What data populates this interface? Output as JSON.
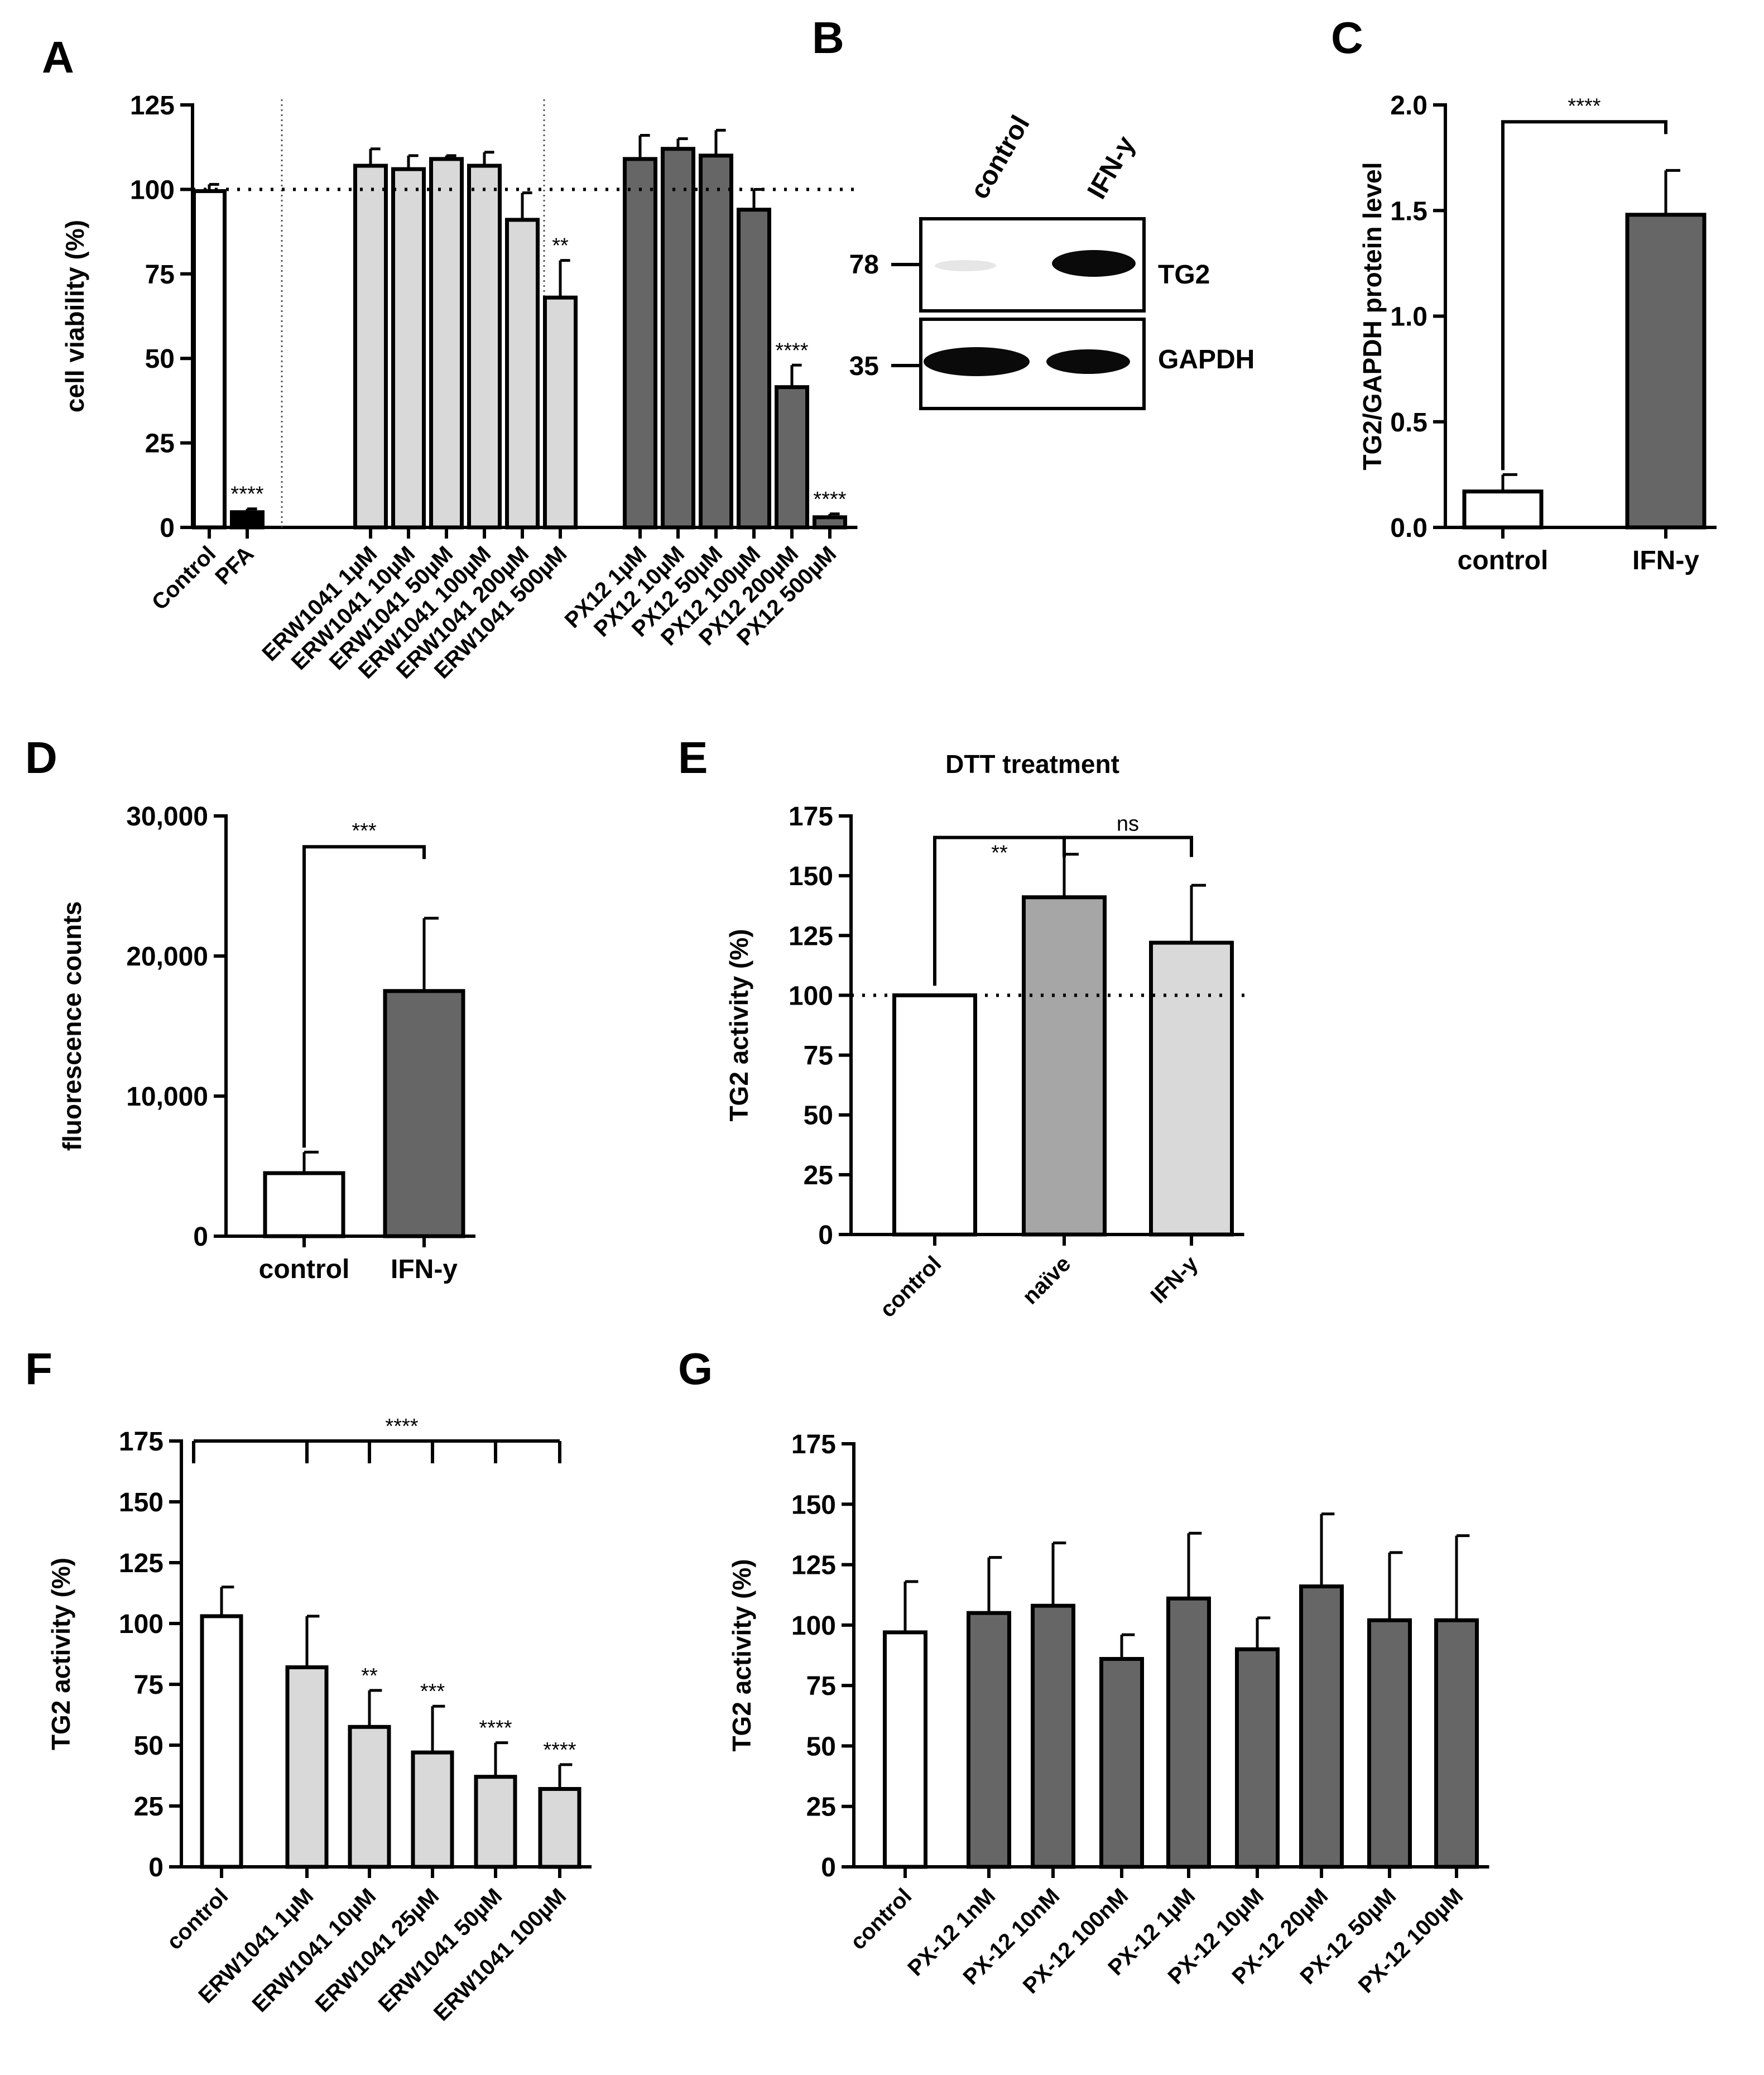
{
  "panels": {
    "A": "A",
    "B": "B",
    "C": "C",
    "D": "D",
    "E": "E",
    "F": "F",
    "G": "G"
  },
  "colors": {
    "white": "#ffffff",
    "light": "#d9d9d9",
    "dark": "#666666",
    "medium": "#a6a6a6"
  },
  "blot": {
    "lane_labels": [
      "control",
      "IFN-y"
    ],
    "bands": [
      {
        "marker": "78",
        "name": "TG2"
      },
      {
        "marker": "35",
        "name": "GAPDH"
      }
    ]
  },
  "chart_data": [
    {
      "panel": "A",
      "type": "bar",
      "title": "",
      "xlabel": "",
      "ylabel": "cell viability (%)",
      "ylim": [
        0,
        125
      ],
      "yticks": [
        "0",
        "25",
        "50",
        "75",
        "100",
        "125"
      ],
      "ytick_values": [
        0,
        25,
        50,
        75,
        100,
        125
      ],
      "reference_line": 100,
      "categories": [
        "Control",
        "PFA",
        "ERW1041 1µM",
        "ERW1041 10µM",
        "ERW1041 50µM",
        "ERW1041 100µM",
        "ERW1041 200µM",
        "ERW1041 500µM",
        "PX12 1µM",
        "PX12 10µM",
        "PX12 50µM",
        "PX12 100µM",
        "PX12 200µM",
        "PX12 500µM"
      ],
      "values": [
        99.5,
        4.5,
        107,
        106,
        109,
        107,
        91,
        68,
        109,
        112,
        110,
        94,
        41.5,
        3
      ],
      "errors": [
        2,
        1,
        5,
        4,
        1,
        4,
        8,
        11,
        7,
        3,
        7.5,
        6,
        6.5,
        1
      ],
      "colors": [
        "white",
        "black",
        "light",
        "light",
        "light",
        "light",
        "light",
        "light",
        "dark",
        "dark",
        "dark",
        "dark",
        "dark",
        "dark"
      ],
      "significance": [
        "",
        "****",
        "",
        "",
        "",
        "",
        "",
        "**",
        "",
        "",
        "",
        "",
        "****",
        "****"
      ]
    },
    {
      "panel": "C",
      "type": "bar",
      "title": "",
      "xlabel": "",
      "ylabel": "TG2/GAPDH protein level",
      "ylim": [
        0,
        2.0
      ],
      "yticks": [
        "0.0",
        "0.5",
        "1.0",
        "1.5",
        "2.0"
      ],
      "ytick_values": [
        0,
        0.5,
        1.0,
        1.5,
        2.0
      ],
      "categories": [
        "control",
        "IFN-y"
      ],
      "values": [
        0.17,
        1.48
      ],
      "errors": [
        0.08,
        0.21
      ],
      "colors": [
        "white",
        "dark"
      ],
      "bracket_label": "****"
    },
    {
      "panel": "D",
      "type": "bar",
      "title": "",
      "xlabel": "",
      "ylabel": "fluorescence counts",
      "ylim": [
        0,
        30000
      ],
      "yticks": [
        "0",
        "10,000",
        "20,000",
        "30,000"
      ],
      "ytick_values": [
        0,
        10000,
        20000,
        30000
      ],
      "categories": [
        "control",
        "IFN-y"
      ],
      "values": [
        4500,
        17500
      ],
      "errors": [
        1500,
        5200
      ],
      "colors": [
        "white",
        "dark"
      ],
      "bracket_label": "***"
    },
    {
      "panel": "E",
      "type": "bar",
      "title": "DTT treatment",
      "xlabel": "",
      "ylabel": "TG2 activity (%)",
      "ylim": [
        0,
        175
      ],
      "yticks": [
        "0",
        "25",
        "50",
        "75",
        "100",
        "125",
        "150",
        "175"
      ],
      "ytick_values": [
        0,
        25,
        50,
        75,
        100,
        125,
        150,
        175
      ],
      "reference_line": 100,
      "categories": [
        "control",
        "naïve",
        "IFN-y"
      ],
      "values": [
        100,
        141,
        122
      ],
      "errors": [
        0,
        18,
        24
      ],
      "colors": [
        "white",
        "medium",
        "light"
      ],
      "bracket_labels": [
        "**",
        "ns"
      ]
    },
    {
      "panel": "F",
      "type": "bar",
      "title": "",
      "xlabel": "",
      "ylabel": "TG2 activity (%)",
      "ylim": [
        0,
        175
      ],
      "yticks": [
        "0",
        "25",
        "50",
        "75",
        "100",
        "125",
        "150",
        "175"
      ],
      "ytick_values": [
        0,
        25,
        50,
        75,
        100,
        125,
        150,
        175
      ],
      "categories": [
        "control",
        "ERW1041 1µM",
        "ERW1041 10µM",
        "ERW1041 25µM",
        "ERW1041 50µM",
        "ERW1041 100µM"
      ],
      "values": [
        103,
        82,
        57.5,
        47,
        37,
        32
      ],
      "errors": [
        12,
        21,
        15,
        19,
        14,
        10
      ],
      "colors": [
        "white",
        "light",
        "light",
        "light",
        "light",
        "light"
      ],
      "significance": [
        "",
        "",
        "**",
        "***",
        "****",
        "****"
      ],
      "bracket_label": "****"
    },
    {
      "panel": "G",
      "type": "bar",
      "title": "",
      "xlabel": "",
      "ylabel": "TG2 activity (%)",
      "ylim": [
        0,
        175
      ],
      "yticks": [
        "0",
        "25",
        "50",
        "75",
        "100",
        "125",
        "150",
        "175"
      ],
      "ytick_values": [
        0,
        25,
        50,
        75,
        100,
        125,
        150,
        175
      ],
      "categories": [
        "control",
        "PX-12 1nM",
        "PX-12 10nM",
        "PX-12 100nM",
        "PX-12 1µM",
        "PX-12 10µM",
        "PX-12 20µM",
        "PX-12 50µM",
        "PX-12 100µM"
      ],
      "values": [
        97,
        105,
        108,
        86,
        111,
        90,
        116,
        102,
        102
      ],
      "errors": [
        21,
        23,
        26,
        10,
        27,
        13,
        30,
        28,
        35
      ],
      "colors": [
        "white",
        "dark",
        "dark",
        "dark",
        "dark",
        "dark",
        "dark",
        "dark",
        "dark"
      ]
    }
  ]
}
